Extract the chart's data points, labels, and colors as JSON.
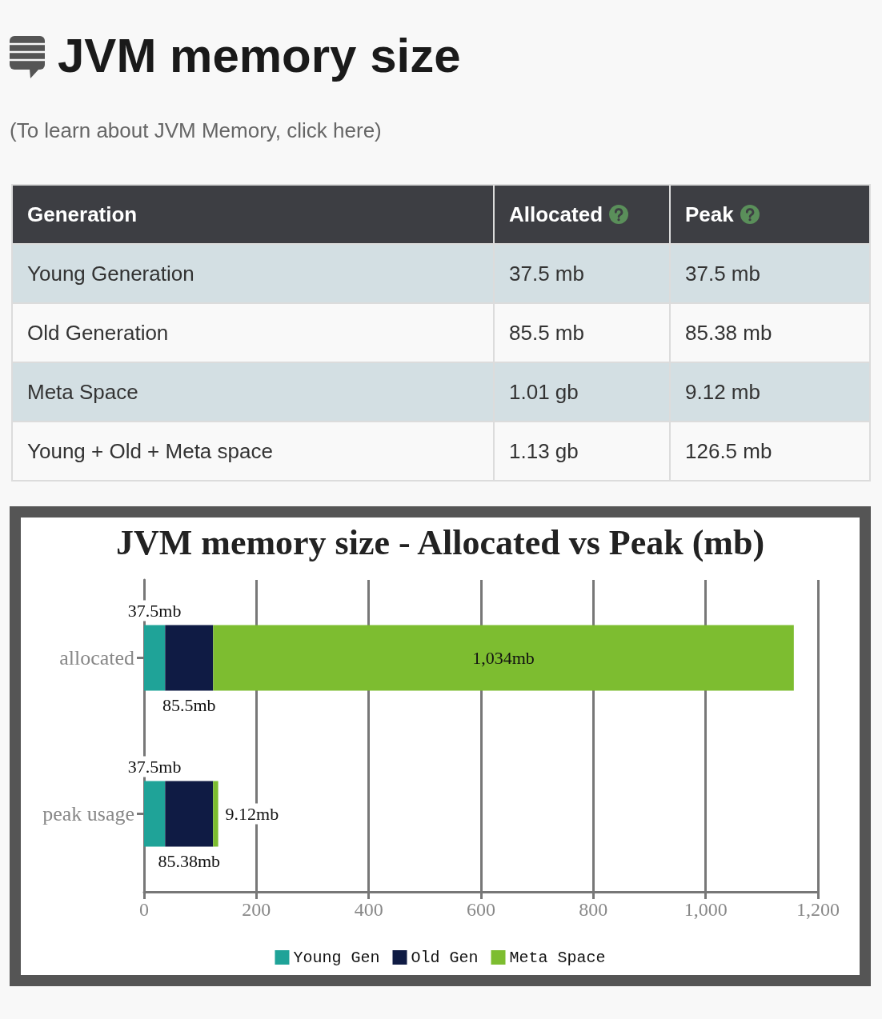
{
  "chart_data": [
    {
      "type": "other",
      "title": "JVM memory size",
      "subtitle": "(To learn about JVM Memory, click here)",
      "annotations": [
        "Generation",
        "Allocated",
        "Peak",
        "Young Generation",
        "37.5 mb",
        "37.5 mb",
        "Old Generation",
        "85.5 mb",
        "85.38 mb",
        "Meta Space",
        "1.01 gb",
        "9.12 mb",
        "Young + Old + Meta space",
        "1.13 gb",
        "126.5 mb"
      ]
    },
    {
      "type": "bar",
      "orientation": "horizontal",
      "stacked": true,
      "title": "JVM memory size - Allocated vs Peak (mb)",
      "categories": [
        "allocated",
        "peak usage"
      ],
      "series": [
        {
          "name": "Young Gen",
          "color": "#1fa398",
          "values": [
            37.5,
            37.5
          ],
          "value_labels": [
            "37.5mb",
            "37.5mb"
          ]
        },
        {
          "name": "Old Gen",
          "color": "#0f1b44",
          "values": [
            85.5,
            85.38
          ],
          "value_labels": [
            "85.5mb",
            "85.38mb"
          ]
        },
        {
          "name": "Meta Space",
          "color": "#7dbd30",
          "values": [
            1034,
            9.12
          ],
          "value_labels": [
            "1,034mb",
            "9.12mb"
          ]
        }
      ],
      "xlim": [
        0,
        1200
      ],
      "xticks": [
        0,
        200,
        400,
        600,
        800,
        {
          "value": 1000,
          "label": "1,000"
        },
        {
          "value": 1200,
          "label": "1,200"
        }
      ],
      "grid": "x",
      "legend": "bottom"
    }
  ]
}
